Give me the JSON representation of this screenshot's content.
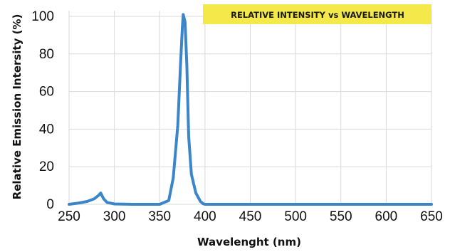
{
  "chart_data": {
    "type": "line",
    "title": "RELATIVE INTENSITY vs WAVELENGTH",
    "xlabel": "Wavelenght (nm)",
    "ylabel": "Relative Emission Intersity (%)",
    "xlim": [
      250,
      650
    ],
    "ylim": [
      0,
      100
    ],
    "x_ticks": [
      "250",
      "300",
      "350",
      "400",
      "450",
      "500",
      "550",
      "600",
      "650"
    ],
    "y_ticks": [
      "0",
      "20",
      "40",
      "60",
      "80",
      "100"
    ],
    "grid": "vertical and horizontal",
    "colors": {
      "line": "#3a86c8",
      "title_background": "#f5e84a",
      "grid": "#d9d9d9"
    },
    "series": [
      {
        "x": [
          250,
          260,
          270,
          278,
          282,
          285,
          288,
          292,
          300,
          320,
          350,
          360,
          365,
          370,
          373,
          375,
          376,
          378,
          380,
          382,
          385,
          390,
          395,
          398,
          400,
          420,
          450,
          500,
          550,
          600,
          650
        ],
        "values": [
          0,
          0.6,
          1.5,
          3,
          4.5,
          6,
          3,
          1,
          0.2,
          0,
          0,
          2,
          14,
          42,
          74,
          94,
          101,
          97,
          74,
          36,
          16,
          6,
          1.5,
          0.3,
          0,
          0,
          0,
          0,
          0,
          0,
          0
        ]
      }
    ]
  }
}
